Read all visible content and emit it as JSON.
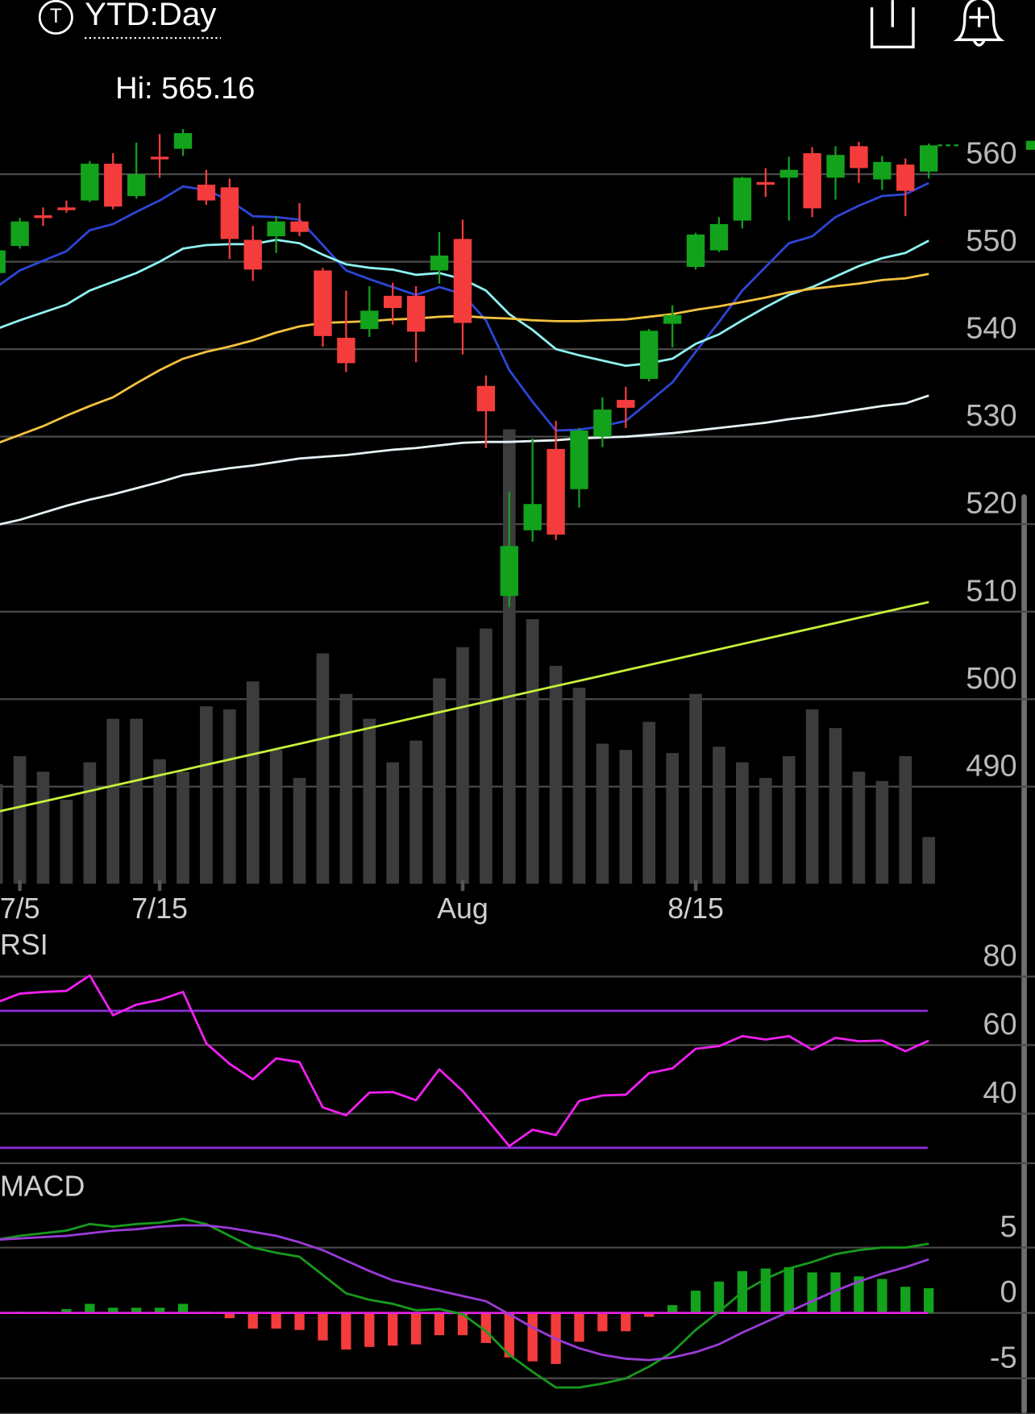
{
  "header": {
    "title": "YTD:Day"
  },
  "chart_data": [
    {
      "type": "candlestick",
      "annotation": "Hi: 565.16",
      "categories": [
        null,
        "7/5",
        null,
        null,
        null,
        null,
        null,
        "7/15",
        null,
        null,
        null,
        null,
        null,
        null,
        null,
        null,
        null,
        null,
        null,
        null,
        "Aug",
        null,
        null,
        null,
        null,
        null,
        null,
        null,
        null,
        null,
        "8/15",
        null,
        null,
        null,
        null,
        null,
        null,
        null,
        null,
        null,
        null
      ],
      "open": [
        548.7,
        551.8,
        555.3,
        556.2,
        557.0,
        561.2,
        557.5,
        562.0,
        562.9,
        558.8,
        558.5,
        552.5,
        552.9,
        554.6,
        549.0,
        541.3,
        542.3,
        546.1,
        546.1,
        549.0,
        552.6,
        535.8,
        511.8,
        519.3,
        528.6,
        524.0,
        530.0,
        534.2,
        536.6,
        542.9,
        549.4,
        551.3,
        554.7,
        559.1,
        559.6,
        562.4,
        559.6,
        563.2,
        559.4,
        561.1,
        560.3
      ],
      "high": [
        551.6,
        555.0,
        556.2,
        557.0,
        561.5,
        562.4,
        563.6,
        564.6,
        565.16,
        560.5,
        559.5,
        554.1,
        555.2,
        556.7,
        549.3,
        546.7,
        547.2,
        547.6,
        547.2,
        553.4,
        554.8,
        537.0,
        523.7,
        529.8,
        531.8,
        531.0,
        534.5,
        535.7,
        542.3,
        545.0,
        553.3,
        555.1,
        559.7,
        560.7,
        562.0,
        563.1,
        563.2,
        563.7,
        562.1,
        561.8,
        563.5
      ],
      "low": [
        548.0,
        551.5,
        554.1,
        555.6,
        556.8,
        556.0,
        557.2,
        559.6,
        562.1,
        556.5,
        550.3,
        547.8,
        551.0,
        552.9,
        540.3,
        537.4,
        541.4,
        542.8,
        538.5,
        547.5,
        539.4,
        528.7,
        510.5,
        518.0,
        518.2,
        521.9,
        528.8,
        531.0,
        536.3,
        540.2,
        549.1,
        551.1,
        553.8,
        557.4,
        554.7,
        555.1,
        557.1,
        559.0,
        558.2,
        555.2,
        559.5
      ],
      "close": [
        551.3,
        554.6,
        555.1,
        556.0,
        561.2,
        556.3,
        560.0,
        561.8,
        564.7,
        557.0,
        552.6,
        549.1,
        554.6,
        553.4,
        541.5,
        538.4,
        544.4,
        544.7,
        542.0,
        550.7,
        543.0,
        532.9,
        517.5,
        522.3,
        518.8,
        530.7,
        533.1,
        533.3,
        542.1,
        543.9,
        553.1,
        554.3,
        559.6,
        558.9,
        560.5,
        556.1,
        562.2,
        560.7,
        561.4,
        558.1,
        563.3
      ],
      "up_color": "#13a21c",
      "down_color": "#f53c3c",
      "series": [
        {
          "color": "#2d46d6",
          "values": [
            547.1,
            549.0,
            550.1,
            551.2,
            553.6,
            554.3,
            555.7,
            557.0,
            558.6,
            558.2,
            557.0,
            555.2,
            555.1,
            554.8,
            551.9,
            549.0,
            548.0,
            547.1,
            546.2,
            547.1,
            546.3,
            543.3,
            537.6,
            534.0,
            530.7,
            530.8,
            531.2,
            531.8,
            534.0,
            536.2,
            539.7,
            543.1,
            546.7,
            549.4,
            552.1,
            552.9,
            555.1,
            556.4,
            557.5,
            557.7,
            559.0
          ]
        },
        {
          "color": "#8ef2f0",
          "values": [
            542.3,
            543.3,
            544.2,
            545.1,
            546.7,
            547.7,
            548.7,
            550.0,
            551.5,
            551.9,
            552.0,
            552.0,
            552.5,
            552.1,
            550.8,
            549.7,
            549.3,
            549.1,
            548.5,
            548.7,
            548.0,
            546.7,
            544.0,
            542.2,
            540.0,
            539.3,
            538.7,
            538.1,
            538.4,
            538.9,
            540.6,
            541.7,
            543.3,
            544.8,
            546.2,
            547.1,
            548.3,
            549.5,
            550.4,
            551.0,
            552.4
          ]
        },
        {
          "color": "#f4c23e",
          "values": [
            529.2,
            530.2,
            531.2,
            532.4,
            533.5,
            534.5,
            536.1,
            537.6,
            538.9,
            539.7,
            540.3,
            541.0,
            541.9,
            542.6,
            543.0,
            543.1,
            543.2,
            543.4,
            543.5,
            543.7,
            543.8,
            543.6,
            543.5,
            543.3,
            543.2,
            543.2,
            543.3,
            543.4,
            543.7,
            544.0,
            544.5,
            544.9,
            545.4,
            545.9,
            546.5,
            546.9,
            547.2,
            547.5,
            547.9,
            548.1,
            548.6
          ]
        },
        {
          "color": "#e6f2f6",
          "values": [
            519.9,
            520.5,
            521.3,
            522.1,
            522.8,
            523.4,
            524.1,
            524.8,
            525.6,
            526.0,
            526.4,
            526.7,
            527.1,
            527.5,
            527.7,
            527.9,
            528.2,
            528.5,
            528.7,
            529.0,
            529.3,
            529.4,
            529.4,
            529.5,
            529.6,
            529.8,
            529.9,
            530.0,
            530.2,
            530.4,
            530.7,
            531.0,
            531.3,
            531.6,
            532.0,
            532.3,
            532.7,
            533.1,
            533.5,
            533.8,
            534.7
          ]
        },
        {
          "color": "#c6f03a",
          "values": [
            487.1,
            487.7,
            488.3,
            488.9,
            489.5,
            490.1,
            490.7,
            491.3,
            491.9,
            492.5,
            493.1,
            493.7,
            494.3,
            494.9,
            495.5,
            496.1,
            496.7,
            497.3,
            497.9,
            498.5,
            499.1,
            499.7,
            500.3,
            500.9,
            501.5,
            502.1,
            502.7,
            503.3,
            503.9,
            504.5,
            505.1,
            505.7,
            506.3,
            506.9,
            507.5,
            508.1,
            508.7,
            509.3,
            509.9,
            510.5,
            511.1
          ]
        }
      ],
      "volume": {
        "color": "#3c3c3c",
        "values": [
          32,
          41,
          36,
          27,
          39,
          53,
          53,
          40,
          36,
          57,
          56,
          65,
          43,
          34,
          74,
          61,
          53,
          39,
          46,
          66,
          76,
          82,
          146,
          85,
          70,
          63,
          45,
          43,
          52,
          42,
          61,
          44,
          39,
          34,
          41,
          56,
          50,
          36,
          33,
          41,
          15
        ]
      },
      "ylim": [
        478.9,
        579.9
      ],
      "yticks": [
        490,
        500,
        510,
        520,
        530,
        540,
        550,
        560
      ],
      "grid": true
    },
    {
      "type": "line",
      "title": "RSI",
      "values": [
        72.4,
        75.0,
        75.5,
        75.8,
        80.3,
        68.7,
        71.8,
        73.2,
        75.5,
        60.5,
        54.5,
        50.0,
        56.1,
        55.0,
        41.8,
        39.5,
        46.1,
        46.3,
        43.9,
        52.9,
        46.6,
        38.7,
        30.5,
        35.3,
        33.7,
        43.7,
        45.3,
        45.5,
        51.8,
        53.2,
        58.9,
        59.7,
        62.6,
        61.6,
        62.6,
        58.7,
        62.1,
        61.1,
        61.3,
        58.2,
        61.3
      ],
      "color": "#f020f0",
      "ref_lines": [
        70,
        30
      ],
      "ref_color": "#8b2ed6",
      "ylim": [
        25.5,
        91.3
      ],
      "yticks": [
        40,
        60,
        80
      ],
      "grid": true
    },
    {
      "type": "macd",
      "title": "MACD",
      "series": [
        {
          "color": "#179a1d",
          "values": [
            5.6,
            5.9,
            6.1,
            6.3,
            6.8,
            6.6,
            6.8,
            6.9,
            7.2,
            6.8,
            5.9,
            5.0,
            4.6,
            4.3,
            2.9,
            1.5,
            1.0,
            0.7,
            0.2,
            0.3,
            -0.1,
            -1.4,
            -3.2,
            -4.5,
            -5.7,
            -5.7,
            -5.4,
            -5.0,
            -4.1,
            -3.0,
            -1.3,
            0.1,
            1.6,
            2.6,
            3.4,
            3.9,
            4.5,
            4.8,
            5.0,
            5.0,
            5.3
          ]
        },
        {
          "color": "#9b3bd8",
          "values": [
            5.6,
            5.7,
            5.8,
            5.9,
            6.1,
            6.3,
            6.4,
            6.6,
            6.7,
            6.7,
            6.5,
            6.2,
            5.9,
            5.4,
            4.8,
            4.0,
            3.2,
            2.5,
            2.1,
            1.7,
            1.3,
            0.9,
            -0.1,
            -1.1,
            -2.0,
            -2.7,
            -3.2,
            -3.5,
            -3.6,
            -3.4,
            -3.0,
            -2.4,
            -1.5,
            -0.7,
            0.1,
            0.9,
            1.7,
            2.4,
            3.0,
            3.5,
            4.1
          ]
        }
      ],
      "histogram": [
        0,
        0.1,
        0.1,
        0.3,
        0.7,
        0.4,
        0.4,
        0.4,
        0.7,
        0.1,
        -0.4,
        -1.2,
        -1.2,
        -1.3,
        -2.1,
        -2.8,
        -2.6,
        -2.5,
        -2.4,
        -1.7,
        -1.7,
        -2.3,
        -3.4,
        -3.7,
        -3.9,
        -2.2,
        -1.4,
        -1.4,
        -0.3,
        0.6,
        1.7,
        2.4,
        3.2,
        3.4,
        3.5,
        3.1,
        3.1,
        2.8,
        2.6,
        2.0,
        1.9
      ],
      "up_color": "#13a21c",
      "down_color": "#f53c3c",
      "zero_color": "#e020e0",
      "ylim": [
        -7.72,
        10.76
      ],
      "yticks": [
        -5,
        0,
        5
      ],
      "grid": true
    }
  ]
}
